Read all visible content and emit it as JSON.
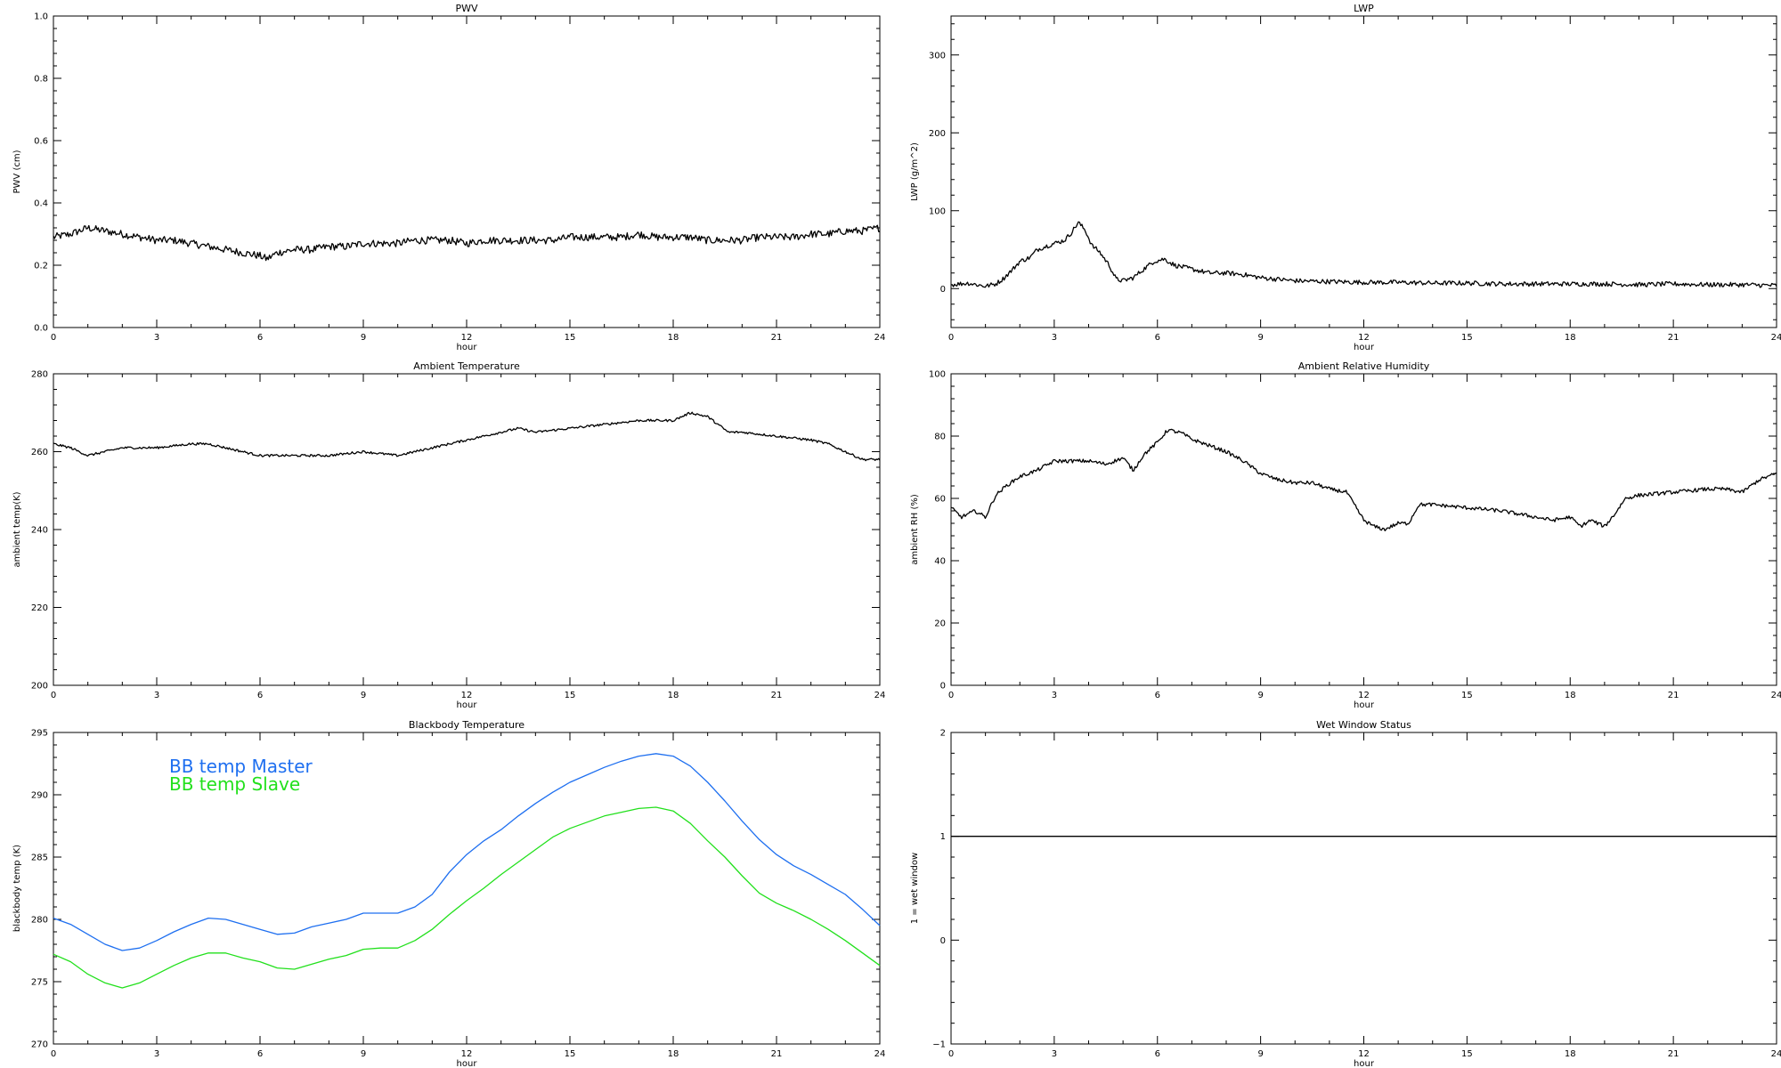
{
  "chart_data": [
    {
      "id": "pwv",
      "type": "line",
      "title": "PWV",
      "xlabel": "hour",
      "ylabel": "PWV (cm)",
      "xlim": [
        0,
        24
      ],
      "ylim": [
        0.0,
        1.0
      ],
      "xticks": [
        "0",
        "3",
        "6",
        "9",
        "12",
        "15",
        "18",
        "21",
        "24"
      ],
      "yticks": [
        "0.0",
        "0.2",
        "0.4",
        "0.6",
        "0.8",
        "1.0"
      ],
      "grid": false,
      "series": [
        {
          "color": "#000000",
          "noise": 0.012,
          "x": [
            0,
            0.5,
            1,
            1.5,
            2,
            2.5,
            3,
            3.5,
            4,
            4.5,
            5,
            5.5,
            6,
            6.2,
            6.5,
            7,
            7.5,
            8,
            8.5,
            9,
            9.5,
            10,
            10.5,
            11,
            11.5,
            12,
            12.5,
            13,
            13.5,
            14,
            14.5,
            15,
            15.5,
            16,
            16.5,
            17,
            17.5,
            18,
            18.5,
            19,
            19.5,
            20,
            20.5,
            21,
            21.5,
            22,
            22.5,
            23,
            23.5,
            24
          ],
          "y": [
            0.29,
            0.3,
            0.32,
            0.31,
            0.3,
            0.29,
            0.28,
            0.28,
            0.27,
            0.26,
            0.25,
            0.24,
            0.23,
            0.22,
            0.24,
            0.25,
            0.25,
            0.26,
            0.26,
            0.27,
            0.27,
            0.27,
            0.28,
            0.28,
            0.28,
            0.27,
            0.28,
            0.28,
            0.28,
            0.28,
            0.28,
            0.29,
            0.29,
            0.29,
            0.29,
            0.3,
            0.29,
            0.29,
            0.29,
            0.28,
            0.28,
            0.28,
            0.29,
            0.29,
            0.29,
            0.3,
            0.3,
            0.31,
            0.31,
            0.32
          ]
        }
      ]
    },
    {
      "id": "lwp",
      "type": "line",
      "title": "LWP",
      "xlabel": "hour",
      "ylabel": "LWP (g/m^2)",
      "xlim": [
        0,
        24
      ],
      "ylim": [
        -50,
        350
      ],
      "xticks": [
        "0",
        "3",
        "6",
        "9",
        "12",
        "15",
        "18",
        "21",
        "24"
      ],
      "yticks": [
        "0",
        "100",
        "200",
        "300"
      ],
      "ytickvals": [
        0,
        100,
        200,
        300
      ],
      "grid": false,
      "series": [
        {
          "color": "#000000",
          "noise": 3,
          "x": [
            0,
            0.5,
            1,
            1.3,
            1.5,
            1.8,
            2,
            2.3,
            2.5,
            2.8,
            3,
            3.3,
            3.5,
            3.7,
            3.9,
            4.1,
            4.3,
            4.6,
            4.8,
            5,
            5.3,
            5.6,
            5.9,
            6.2,
            6.5,
            7,
            7.5,
            8,
            8.5,
            9,
            9.5,
            10,
            11,
            12,
            13,
            14,
            15,
            16,
            17,
            18,
            19,
            20,
            21,
            22,
            23,
            24
          ],
          "y": [
            5,
            7,
            3,
            6,
            12,
            25,
            35,
            40,
            50,
            55,
            58,
            62,
            72,
            85,
            75,
            55,
            48,
            30,
            12,
            10,
            14,
            25,
            35,
            38,
            30,
            25,
            20,
            20,
            18,
            14,
            12,
            10,
            9,
            8,
            8,
            7,
            7,
            6,
            6,
            6,
            6,
            5,
            6,
            5,
            5,
            4
          ]
        }
      ]
    },
    {
      "id": "ambient-temp",
      "type": "line",
      "title": "Ambient Temperature",
      "xlabel": "hour",
      "ylabel": "ambient temp(K)",
      "xlim": [
        0,
        24
      ],
      "ylim": [
        200,
        280
      ],
      "xticks": [
        "0",
        "3",
        "6",
        "9",
        "12",
        "15",
        "18",
        "21",
        "24"
      ],
      "yticks": [
        "200",
        "220",
        "240",
        "260",
        "280"
      ],
      "grid": false,
      "series": [
        {
          "color": "#000000",
          "noise": 0.3,
          "x": [
            0,
            0.5,
            1,
            1.5,
            2,
            3,
            4,
            4.5,
            5,
            6,
            7,
            8,
            9,
            10,
            11,
            12,
            12.5,
            13,
            13.5,
            14,
            15,
            16,
            17,
            17.5,
            18,
            18.5,
            19,
            19.3,
            19.6,
            20,
            21,
            22,
            22.5,
            23,
            23.5,
            24
          ],
          "y": [
            262,
            261,
            259,
            260,
            261,
            261,
            262,
            262,
            261,
            259,
            259,
            259,
            260,
            259,
            261,
            263,
            264,
            265,
            266,
            265,
            266,
            267,
            268,
            268,
            268,
            270,
            269,
            267,
            265,
            265,
            264,
            263,
            262,
            260,
            258,
            258
          ]
        }
      ]
    },
    {
      "id": "ambient-rh",
      "type": "line",
      "title": "Ambient Relative Humidity",
      "xlabel": "hour",
      "ylabel": "ambient RH (%)",
      "xlim": [
        0,
        24
      ],
      "ylim": [
        0,
        100
      ],
      "xticks": [
        "0",
        "3",
        "6",
        "9",
        "12",
        "15",
        "18",
        "21",
        "24"
      ],
      "yticks": [
        "0",
        "20",
        "40",
        "60",
        "80",
        "100"
      ],
      "grid": false,
      "series": [
        {
          "color": "#000000",
          "noise": 0.6,
          "x": [
            0,
            0.3,
            0.7,
            1,
            1.3,
            1.6,
            2,
            2.5,
            3,
            3.5,
            4,
            4.5,
            5,
            5.3,
            5.6,
            6,
            6.3,
            6.7,
            7,
            7.5,
            8,
            8.5,
            9,
            9.5,
            10,
            10.5,
            11,
            11.5,
            12,
            12.3,
            12.6,
            13,
            13.3,
            13.6,
            14,
            15,
            16,
            17,
            17.5,
            18,
            18.3,
            18.6,
            19,
            19.3,
            19.6,
            20,
            21,
            22,
            22.5,
            23,
            23.5,
            24
          ],
          "y": [
            57,
            54,
            56,
            54,
            61,
            64,
            67,
            69,
            72,
            72,
            72,
            71,
            73,
            69,
            74,
            78,
            82,
            81,
            79,
            77,
            75,
            72,
            68,
            66,
            65,
            65,
            63,
            62,
            53,
            51,
            50,
            52,
            52,
            58,
            58,
            57,
            56,
            54,
            53,
            54,
            51,
            53,
            51,
            55,
            60,
            61,
            62,
            63,
            63,
            62,
            66,
            68
          ]
        }
      ]
    },
    {
      "id": "blackbody-temp",
      "type": "line",
      "title": "Blackbody Temperature",
      "xlabel": "hour",
      "ylabel": "blackbody temp (K)",
      "xlim": [
        0,
        24
      ],
      "ylim": [
        270,
        295
      ],
      "xticks": [
        "0",
        "3",
        "6",
        "9",
        "12",
        "15",
        "18",
        "21",
        "24"
      ],
      "yticks": [
        "270",
        "275",
        "280",
        "285",
        "290",
        "295"
      ],
      "grid": false,
      "legend": "upper-left",
      "series": [
        {
          "name": "BB temp Master",
          "color": "#1e6ff0",
          "noise": 0,
          "x": [
            0,
            0.5,
            1,
            1.5,
            2,
            2.5,
            3,
            3.5,
            4,
            4.5,
            5,
            5.5,
            6,
            6.5,
            7,
            7.5,
            8,
            8.5,
            9,
            9.5,
            10,
            10.5,
            11,
            11.5,
            12,
            12.5,
            13,
            13.5,
            14,
            14.5,
            15,
            15.5,
            16,
            16.5,
            17,
            17.5,
            18,
            18.5,
            19,
            19.5,
            20,
            20.5,
            21,
            21.5,
            22,
            22.5,
            23,
            23.5,
            24
          ],
          "y": [
            280.1,
            279.6,
            278.8,
            278.0,
            277.5,
            277.7,
            278.3,
            279.0,
            279.6,
            280.1,
            280.0,
            279.6,
            279.2,
            278.8,
            278.9,
            279.4,
            279.7,
            280.0,
            280.5,
            280.5,
            280.5,
            281.0,
            282.0,
            283.8,
            285.2,
            286.3,
            287.2,
            288.3,
            289.3,
            290.2,
            291.0,
            291.6,
            292.2,
            292.7,
            293.1,
            293.3,
            293.1,
            292.3,
            291.0,
            289.5,
            287.9,
            286.4,
            285.2,
            284.3,
            283.6,
            282.8,
            282.0,
            280.8,
            279.5
          ]
        },
        {
          "name": "BB temp Slave",
          "color": "#22e01c",
          "noise": 0,
          "x": [
            0,
            0.5,
            1,
            1.5,
            2,
            2.5,
            3,
            3.5,
            4,
            4.5,
            5,
            5.5,
            6,
            6.5,
            7,
            7.5,
            8,
            8.5,
            9,
            9.5,
            10,
            10.5,
            11,
            11.5,
            12,
            12.5,
            13,
            13.5,
            14,
            14.5,
            15,
            15.5,
            16,
            16.5,
            17,
            17.5,
            18,
            18.5,
            19,
            19.5,
            20,
            20.5,
            21,
            21.5,
            22,
            22.5,
            23,
            23.5,
            24
          ],
          "y": [
            277.2,
            276.6,
            275.6,
            274.9,
            274.5,
            274.9,
            275.6,
            276.3,
            276.9,
            277.3,
            277.3,
            276.9,
            276.6,
            276.1,
            276.0,
            276.4,
            276.8,
            277.1,
            277.6,
            277.7,
            277.7,
            278.3,
            279.2,
            280.4,
            281.5,
            282.5,
            283.6,
            284.6,
            285.6,
            286.6,
            287.3,
            287.8,
            288.3,
            288.6,
            288.9,
            289.0,
            288.7,
            287.7,
            286.3,
            285.0,
            283.5,
            282.1,
            281.3,
            280.7,
            280.0,
            279.2,
            278.3,
            277.3,
            276.3
          ]
        }
      ]
    },
    {
      "id": "wet-window",
      "type": "line",
      "title": "Wet Window Status",
      "xlabel": "hour",
      "ylabel": "1 = wet window",
      "xlim": [
        0,
        24
      ],
      "ylim": [
        -1,
        2
      ],
      "xticks": [
        "0",
        "3",
        "6",
        "9",
        "12",
        "15",
        "18",
        "21",
        "24"
      ],
      "yticks": [
        "−1",
        "0",
        "1",
        "2"
      ],
      "grid": false,
      "series": [
        {
          "color": "#000000",
          "noise": 0,
          "x": [
            0,
            24
          ],
          "y": [
            1,
            1
          ]
        }
      ]
    }
  ]
}
